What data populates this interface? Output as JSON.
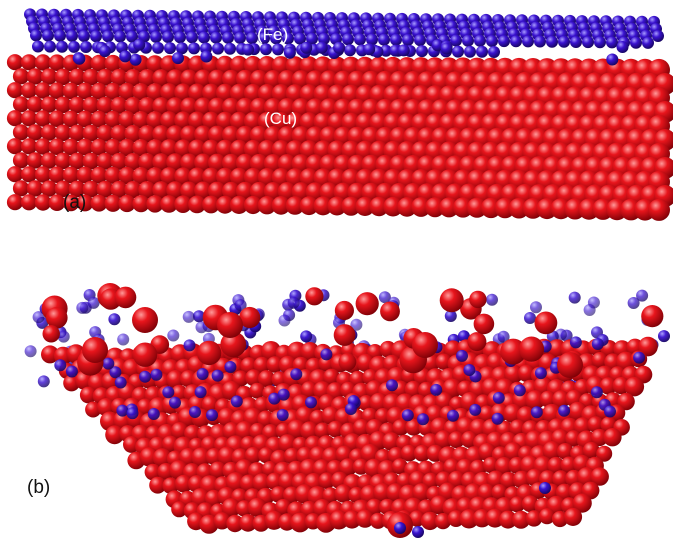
{
  "panels": [
    {
      "label": "(a)",
      "annotations": [
        "(Fe)",
        "(Cu)"
      ]
    },
    {
      "label": "(b)"
    }
  ]
}
